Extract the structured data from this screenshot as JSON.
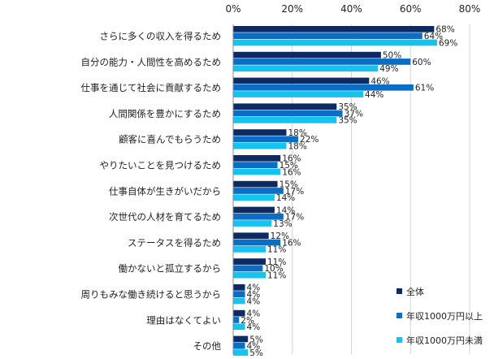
{
  "chart_data": {
    "type": "bar",
    "orientation": "horizontal",
    "xlim": [
      0,
      80
    ],
    "xticks": [
      "0%",
      "20%",
      "40%",
      "60%",
      "80%"
    ],
    "gridlines": true,
    "legend_position": "bottom-right",
    "categories": [
      "さらに多くの収入を得るため",
      "自分の能力・人間性を高めるため",
      "仕事を通じて社会に貢献するため",
      "人間関係を豊かにするため",
      "顧客に喜んでもらうため",
      "やりたいことを見つけるため",
      "仕事自体が生きがいだから",
      "次世代の人材を育てるため",
      "ステータスを得るため",
      "働かないと孤立するから",
      "周りもみな働き続けると思うから",
      "理由はなくてよい",
      "その他"
    ],
    "series": [
      {
        "name": "全体",
        "color": "#0d2a63",
        "values": [
          68,
          50,
          46,
          35,
          18,
          16,
          15,
          14,
          12,
          11,
          4,
          4,
          5
        ]
      },
      {
        "name": "年収1000万円以上",
        "color": "#0a6fc4",
        "values": [
          64,
          60,
          61,
          37,
          22,
          15,
          17,
          17,
          16,
          10,
          4,
          2,
          4
        ]
      },
      {
        "name": "年収1000万円未満",
        "color": "#15c3f0",
        "values": [
          69,
          49,
          44,
          35,
          18,
          16,
          14,
          13,
          11,
          11,
          4,
          4,
          5
        ]
      }
    ]
  }
}
